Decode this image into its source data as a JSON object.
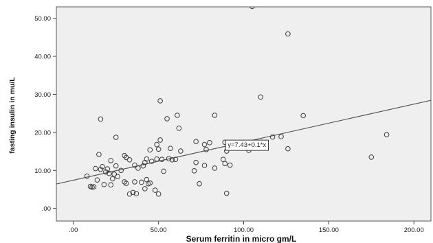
{
  "chart_data": {
    "type": "scatter",
    "xlabel": "Serum ferritin in micro gm/L",
    "ylabel": "fasting insulin in mu/L",
    "xlim": [
      -10,
      210
    ],
    "ylim": [
      -3.3,
      53
    ],
    "x_ticks": [
      0,
      50,
      100,
      150,
      200
    ],
    "x_tick_labels": [
      ".00",
      "50.00",
      "100.00",
      "150.00",
      "200.00"
    ],
    "y_ticks": [
      0,
      10,
      20,
      30,
      40,
      50
    ],
    "y_tick_labels": [
      ".00",
      "10.00",
      "20.00",
      "30.00",
      "40.00",
      "50.00"
    ],
    "grid": false,
    "background_color": "#efefef",
    "marker_color": "#3b3b3b",
    "fit_line": {
      "intercept": 7.43,
      "slope": 0.1
    },
    "fit_label": "y=7.43+0.1*x",
    "fit_label_at": {
      "x": 89,
      "y": 16.8
    },
    "points": [
      {
        "x": 8,
        "y": 8.5
      },
      {
        "x": 10,
        "y": 5.8
      },
      {
        "x": 11,
        "y": 5.6
      },
      {
        "x": 12,
        "y": 5.7
      },
      {
        "x": 13,
        "y": 10.5
      },
      {
        "x": 14,
        "y": 7.5
      },
      {
        "x": 15,
        "y": 14.2
      },
      {
        "x": 16,
        "y": 23.5
      },
      {
        "x": 16,
        "y": 10.3
      },
      {
        "x": 17,
        "y": 11.0
      },
      {
        "x": 18,
        "y": 6.3
      },
      {
        "x": 19,
        "y": 9.6
      },
      {
        "x": 20,
        "y": 10.4
      },
      {
        "x": 21,
        "y": 9.2
      },
      {
        "x": 22,
        "y": 12.6
      },
      {
        "x": 22,
        "y": 6.2
      },
      {
        "x": 23,
        "y": 7.8
      },
      {
        "x": 24,
        "y": 9.0
      },
      {
        "x": 25,
        "y": 18.7
      },
      {
        "x": 25,
        "y": 11.2
      },
      {
        "x": 26,
        "y": 8.4
      },
      {
        "x": 28,
        "y": 10.0
      },
      {
        "x": 30,
        "y": 13.9
      },
      {
        "x": 30,
        "y": 7.0
      },
      {
        "x": 31,
        "y": 6.6
      },
      {
        "x": 31,
        "y": 13.4
      },
      {
        "x": 33,
        "y": 12.8
      },
      {
        "x": 33,
        "y": 3.8
      },
      {
        "x": 35,
        "y": 4.2
      },
      {
        "x": 36,
        "y": 11.4
      },
      {
        "x": 36,
        "y": 7.0
      },
      {
        "x": 37,
        "y": 3.9
      },
      {
        "x": 38,
        "y": 10.6
      },
      {
        "x": 40,
        "y": 6.9
      },
      {
        "x": 41,
        "y": 11.2
      },
      {
        "x": 42,
        "y": 5.2
      },
      {
        "x": 42,
        "y": 12.1
      },
      {
        "x": 43,
        "y": 13.0
      },
      {
        "x": 43,
        "y": 7.6
      },
      {
        "x": 44,
        "y": 6.5
      },
      {
        "x": 45,
        "y": 15.4
      },
      {
        "x": 45,
        "y": 6.7
      },
      {
        "x": 46,
        "y": 12.4
      },
      {
        "x": 48,
        "y": 4.8
      },
      {
        "x": 49,
        "y": 16.8
      },
      {
        "x": 49,
        "y": 13.0
      },
      {
        "x": 50,
        "y": 15.6
      },
      {
        "x": 50,
        "y": 3.8
      },
      {
        "x": 51,
        "y": 28.3
      },
      {
        "x": 51,
        "y": 18.0
      },
      {
        "x": 52,
        "y": 12.9
      },
      {
        "x": 53,
        "y": 9.8
      },
      {
        "x": 55,
        "y": 23.6
      },
      {
        "x": 56,
        "y": 13.1
      },
      {
        "x": 57,
        "y": 15.8
      },
      {
        "x": 58,
        "y": 12.8
      },
      {
        "x": 60,
        "y": 12.9
      },
      {
        "x": 61,
        "y": 24.5
      },
      {
        "x": 62,
        "y": 21.1
      },
      {
        "x": 63,
        "y": 15.1
      },
      {
        "x": 71,
        "y": 9.9
      },
      {
        "x": 72,
        "y": 17.6
      },
      {
        "x": 72,
        "y": 12.1
      },
      {
        "x": 74,
        "y": 6.5
      },
      {
        "x": 77,
        "y": 16.8
      },
      {
        "x": 77,
        "y": 11.3
      },
      {
        "x": 78,
        "y": 15.5
      },
      {
        "x": 80,
        "y": 17.3
      },
      {
        "x": 83,
        "y": 24.5
      },
      {
        "x": 83,
        "y": 10.6
      },
      {
        "x": 88,
        "y": 12.9
      },
      {
        "x": 89,
        "y": 11.8
      },
      {
        "x": 89,
        "y": 17.4
      },
      {
        "x": 90,
        "y": 15.1
      },
      {
        "x": 90,
        "y": 4.0
      },
      {
        "x": 92,
        "y": 11.4
      },
      {
        "x": 103,
        "y": 15.3
      },
      {
        "x": 105,
        "y": 53.1
      },
      {
        "x": 110,
        "y": 29.3
      },
      {
        "x": 117,
        "y": 18.8
      },
      {
        "x": 122,
        "y": 18.9
      },
      {
        "x": 126,
        "y": 45.9
      },
      {
        "x": 126,
        "y": 15.7
      },
      {
        "x": 135,
        "y": 24.4
      },
      {
        "x": 175,
        "y": 13.5
      },
      {
        "x": 184,
        "y": 19.4
      }
    ]
  }
}
